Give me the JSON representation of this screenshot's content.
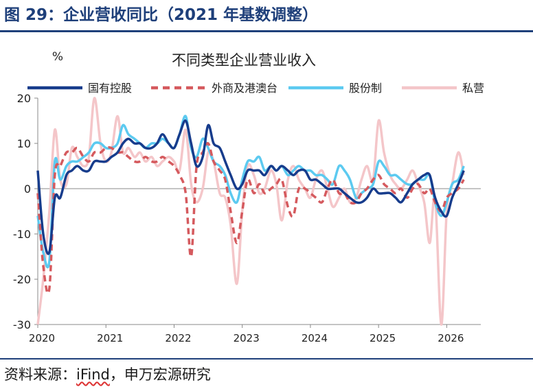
{
  "figure": {
    "title": "图 29：企业营收同比（2021 年基数调整）",
    "source_prefix": "资料来源：",
    "source_ifind": "iFind",
    "source_suffix": "，申万宏源研究"
  },
  "colors": {
    "accent": "#1e3f7a",
    "state_owned": "#173c8c",
    "foreign": "#d55a5e",
    "joint_stock": "#5ccaf0",
    "private": "#f4c6c9"
  },
  "chart_data": {
    "type": "line",
    "title": "不同类型企业营业收入",
    "ylabel": "%",
    "xlabel": "",
    "ylim": [
      -30,
      20
    ],
    "yticks": [
      20,
      10,
      0,
      -10,
      -20,
      -30
    ],
    "xlim": [
      2020,
      2026.5
    ],
    "xticks": [
      "2020",
      "2021",
      "2022",
      "2023",
      "2024",
      "2025",
      "2026"
    ],
    "grid": false,
    "legend_position": "top",
    "series": [
      {
        "name": "国有控股",
        "style": "solid",
        "color": "#173c8c",
        "x": [
          2020.0,
          2020.08,
          2020.17,
          2020.25,
          2020.33,
          2020.42,
          2020.5,
          2020.58,
          2020.67,
          2020.75,
          2020.83,
          2020.92,
          2021.0,
          2021.08,
          2021.17,
          2021.25,
          2021.33,
          2021.42,
          2021.5,
          2021.58,
          2021.67,
          2021.75,
          2021.83,
          2021.92,
          2022.0,
          2022.08,
          2022.17,
          2022.25,
          2022.33,
          2022.42,
          2022.5,
          2022.58,
          2022.67,
          2022.75,
          2022.83,
          2022.92,
          2023.0,
          2023.08,
          2023.17,
          2023.25,
          2023.33,
          2023.42,
          2023.5,
          2023.58,
          2023.67,
          2023.75,
          2023.83,
          2023.92,
          2024.0,
          2024.08,
          2024.17,
          2024.25,
          2024.33,
          2024.42,
          2024.5,
          2024.58,
          2024.67,
          2024.75,
          2024.83,
          2024.92,
          2025.0,
          2025.08,
          2025.17,
          2025.25,
          2025.33,
          2025.42,
          2025.5,
          2025.58,
          2025.67,
          2025.75,
          2025.83,
          2025.92,
          2026.0,
          2026.08,
          2026.17,
          2026.25
        ],
        "y": [
          4,
          -10,
          -14,
          -2,
          -2,
          3,
          4,
          5,
          4,
          4,
          6,
          6,
          6,
          7,
          8,
          10,
          11,
          10,
          10,
          9,
          9,
          10,
          12,
          10,
          9,
          12,
          15,
          10,
          5,
          7,
          14,
          10,
          9,
          6,
          3,
          0,
          1,
          4,
          4,
          4,
          3,
          5,
          4,
          5,
          4,
          3,
          4,
          4,
          2,
          2,
          1,
          0,
          0,
          0,
          -1,
          -2,
          -3,
          -3,
          -2,
          0,
          -1,
          -1,
          -1,
          -2,
          -3,
          -1,
          1,
          2,
          3,
          3,
          -2,
          -5,
          -6,
          -2,
          1,
          4
        ]
      },
      {
        "name": "外商及港澳台",
        "style": "dashed",
        "color": "#d55a5e",
        "x": [
          2020.0,
          2020.08,
          2020.17,
          2020.25,
          2020.33,
          2020.42,
          2020.5,
          2020.58,
          2020.67,
          2020.75,
          2020.83,
          2020.92,
          2021.0,
          2021.08,
          2021.17,
          2021.25,
          2021.33,
          2021.42,
          2021.5,
          2021.58,
          2021.67,
          2021.75,
          2021.83,
          2021.92,
          2022.0,
          2022.08,
          2022.17,
          2022.25,
          2022.33,
          2022.42,
          2022.5,
          2022.58,
          2022.67,
          2022.75,
          2022.83,
          2022.92,
          2023.0,
          2023.08,
          2023.17,
          2023.25,
          2023.33,
          2023.42,
          2023.5,
          2023.58,
          2023.67,
          2023.75,
          2023.83,
          2023.92,
          2024.0,
          2024.08,
          2024.17,
          2024.25,
          2024.33,
          2024.42,
          2024.5,
          2024.58,
          2024.67,
          2024.75,
          2024.83,
          2024.92,
          2025.0,
          2025.08,
          2025.17,
          2025.25,
          2025.33,
          2025.42,
          2025.5,
          2025.58,
          2025.67,
          2025.75,
          2025.83,
          2025.92,
          2026.0,
          2026.08,
          2026.17,
          2026.25
        ],
        "y": [
          -1,
          -17,
          -22,
          3,
          5,
          8,
          8,
          9,
          7,
          6,
          8,
          8,
          9,
          9,
          8,
          8,
          7,
          6,
          6,
          7,
          6,
          6,
          7,
          6,
          5,
          3,
          -1,
          -15,
          5,
          8,
          10,
          6,
          4,
          2,
          -5,
          -12,
          -5,
          2,
          -1,
          1,
          -1,
          0,
          1,
          2,
          -4,
          -6,
          0,
          0,
          -1,
          -2,
          -3,
          0,
          2,
          -1,
          -1,
          -3,
          -3,
          -1,
          0,
          2,
          3,
          1,
          0,
          -1,
          0,
          -2,
          0,
          1,
          -1,
          0,
          -3,
          -5,
          -2,
          -1,
          0,
          2
        ]
      },
      {
        "name": "股份制",
        "style": "solid",
        "color": "#5ccaf0",
        "x": [
          2020.0,
          2020.08,
          2020.17,
          2020.25,
          2020.33,
          2020.42,
          2020.5,
          2020.58,
          2020.67,
          2020.75,
          2020.83,
          2020.92,
          2021.0,
          2021.08,
          2021.17,
          2021.25,
          2021.33,
          2021.42,
          2021.5,
          2021.58,
          2021.67,
          2021.75,
          2021.83,
          2021.92,
          2022.0,
          2022.08,
          2022.17,
          2022.25,
          2022.33,
          2022.42,
          2022.5,
          2022.58,
          2022.67,
          2022.75,
          2022.83,
          2022.92,
          2023.0,
          2023.08,
          2023.17,
          2023.25,
          2023.33,
          2023.42,
          2023.5,
          2023.58,
          2023.67,
          2023.75,
          2023.83,
          2023.92,
          2024.0,
          2024.08,
          2024.17,
          2024.25,
          2024.33,
          2024.42,
          2024.5,
          2024.58,
          2024.67,
          2024.75,
          2024.83,
          2024.92,
          2025.0,
          2025.08,
          2025.17,
          2025.25,
          2025.33,
          2025.42,
          2025.5,
          2025.58,
          2025.67,
          2025.75,
          2025.83,
          2025.92,
          2026.0,
          2026.08,
          2026.17,
          2026.25
        ],
        "y": [
          -6,
          -14,
          -16,
          6,
          2,
          5,
          6,
          6,
          7,
          8,
          10,
          10,
          9,
          9,
          10,
          14,
          12,
          11,
          10,
          9,
          10,
          10,
          11,
          10,
          9,
          12,
          16,
          9,
          7,
          11,
          9,
          6,
          5,
          3,
          -1,
          -3,
          2,
          6,
          6,
          7,
          4,
          5,
          4,
          5,
          3,
          4,
          5,
          4,
          4,
          3,
          3,
          2,
          1,
          5,
          4,
          2,
          -2,
          -1,
          0,
          1,
          6,
          5,
          3,
          3,
          2,
          1,
          1,
          2,
          2,
          3,
          -3,
          -6,
          -3,
          1,
          2,
          5
        ]
      },
      {
        "name": "私营",
        "style": "solid",
        "color": "#f4c6c9",
        "x": [
          2020.0,
          2020.08,
          2020.17,
          2020.25,
          2020.33,
          2020.42,
          2020.5,
          2020.58,
          2020.67,
          2020.75,
          2020.83,
          2020.92,
          2021.0,
          2021.08,
          2021.17,
          2021.25,
          2021.33,
          2021.42,
          2021.5,
          2021.58,
          2021.67,
          2021.75,
          2021.83,
          2021.92,
          2022.0,
          2022.08,
          2022.17,
          2022.25,
          2022.33,
          2022.42,
          2022.5,
          2022.58,
          2022.67,
          2022.75,
          2022.83,
          2022.92,
          2023.0,
          2023.08,
          2023.17,
          2023.25,
          2023.33,
          2023.42,
          2023.5,
          2023.58,
          2023.67,
          2023.75,
          2023.83,
          2023.92,
          2024.0,
          2024.08,
          2024.17,
          2024.25,
          2024.33,
          2024.42,
          2024.5,
          2024.58,
          2024.67,
          2024.75,
          2024.83,
          2024.92,
          2025.0,
          2025.08,
          2025.17,
          2025.25,
          2025.33,
          2025.42,
          2025.5,
          2025.58,
          2025.67,
          2025.75,
          2025.83,
          2025.92,
          2026.0,
          2026.08,
          2026.17,
          2026.25
        ],
        "y": [
          -30,
          -20,
          -5,
          13,
          2,
          1,
          9,
          7,
          5,
          7,
          20,
          10,
          6,
          8,
          16,
          8,
          9,
          7,
          8,
          6,
          7,
          5,
          6,
          7,
          6,
          4,
          13,
          1,
          -3,
          0,
          8,
          6,
          -1,
          -2,
          -8,
          -21,
          -5,
          5,
          3,
          -1,
          0,
          4,
          1,
          -7,
          2,
          5,
          2,
          0,
          -2,
          2,
          4,
          0,
          -4,
          -2,
          0,
          -3,
          -2,
          2,
          5,
          2,
          15,
          8,
          3,
          1,
          0,
          2,
          4,
          1,
          -3,
          -12,
          -2,
          -30,
          -5,
          1,
          8,
          3
        ]
      }
    ]
  }
}
